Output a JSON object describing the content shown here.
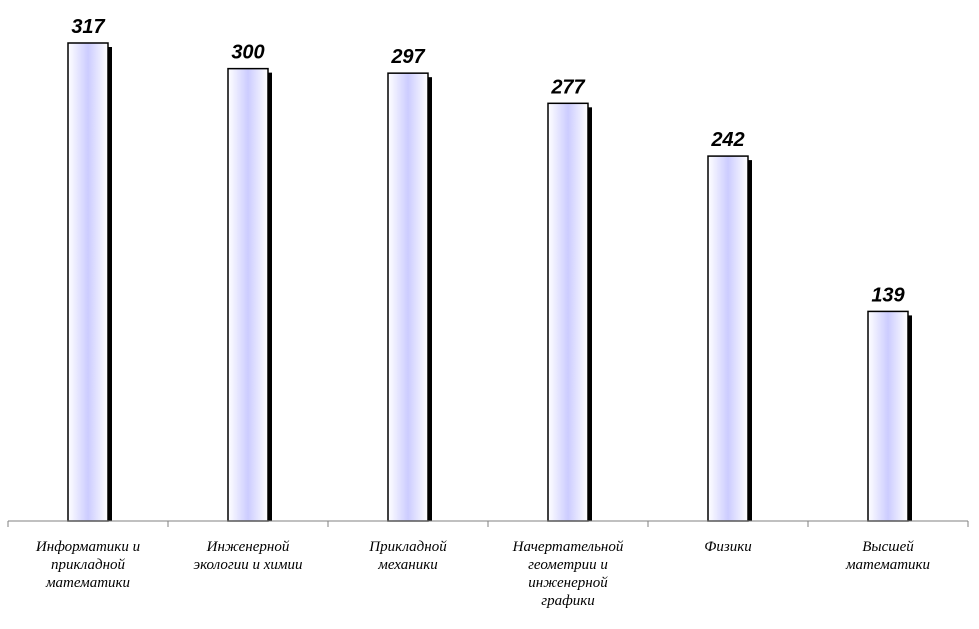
{
  "chart_data": {
    "type": "bar",
    "title": "",
    "xlabel": "",
    "ylabel": "",
    "categories": [
      [
        "Информатики и",
        "прикладной",
        "математики"
      ],
      [
        "Инженерной",
        "экологии и химии"
      ],
      [
        "Прикладной",
        "механики"
      ],
      [
        "Начертательной",
        "геометрии и",
        "инженерной",
        "графики"
      ],
      [
        "Физики"
      ],
      [
        "Высшей",
        "математики"
      ]
    ],
    "values": [
      317,
      300,
      297,
      277,
      242,
      139
    ],
    "ylim": [
      0,
      317
    ],
    "grid": false,
    "legend": "none",
    "data_labels": true,
    "colors": {
      "bar_fill_edge": "#ffffff",
      "bar_fill_center": "#ccccff",
      "bar_stroke": "#000000",
      "shadow": "#000000",
      "axis": "#808080"
    }
  }
}
